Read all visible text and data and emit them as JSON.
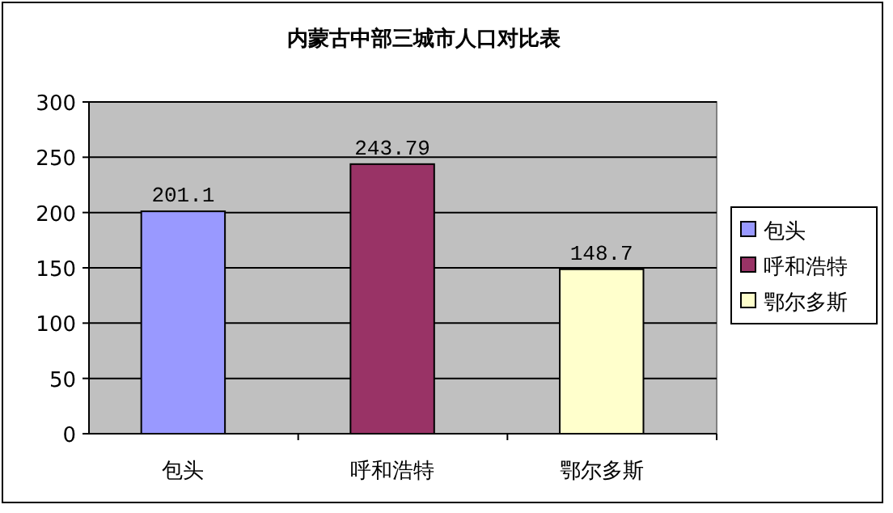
{
  "chart_data": {
    "type": "bar",
    "title": "内蒙古中部三城市人口对比表",
    "categories": [
      "包头",
      "呼和浩特",
      "鄂尔多斯"
    ],
    "stacked": true,
    "series": [
      {
        "name": "包头",
        "color": "#9999ff",
        "values": [
          201.1,
          null,
          null
        ]
      },
      {
        "name": "呼和浩特",
        "color": "#993366",
        "values": [
          null,
          243.79,
          null
        ]
      },
      {
        "name": "鄂尔多斯",
        "color": "#ffffcc",
        "values": [
          null,
          null,
          148.7
        ]
      }
    ],
    "ylim": [
      0,
      300
    ],
    "yticks": [
      0,
      50,
      100,
      150,
      200,
      250,
      300
    ],
    "grid": "y",
    "legend": "right",
    "data_labels": true
  }
}
